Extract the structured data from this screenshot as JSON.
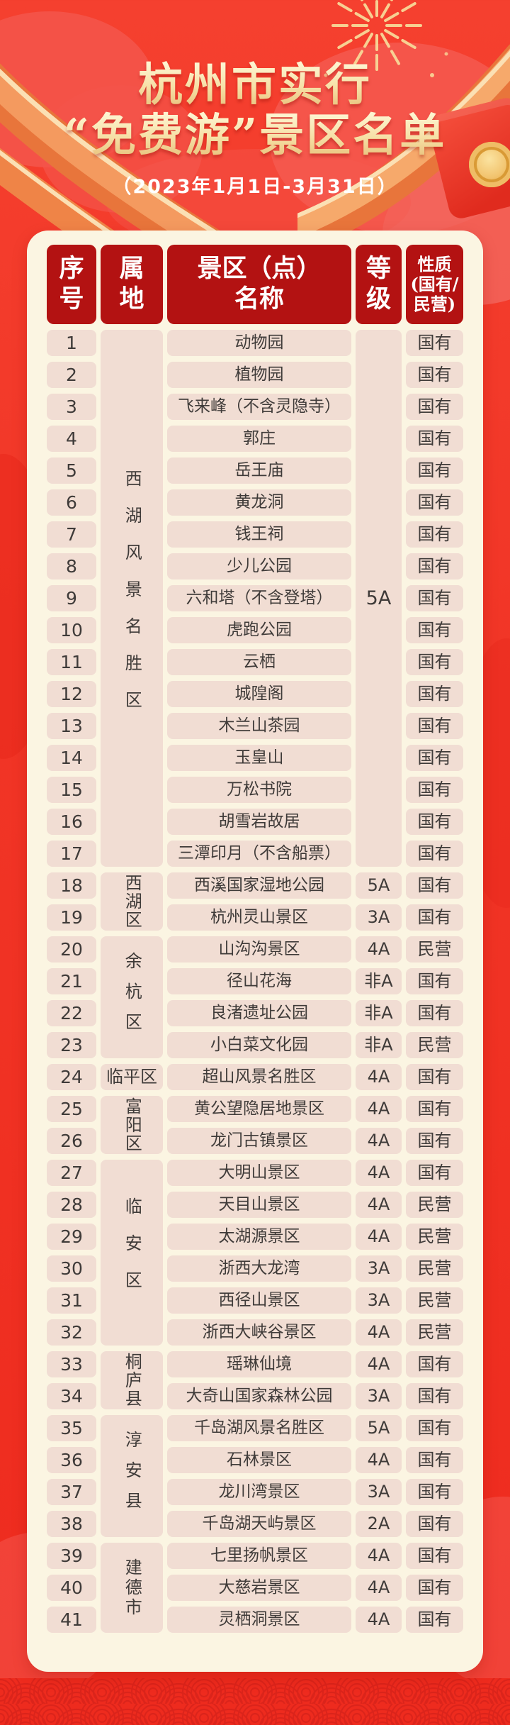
{
  "poster": {
    "title_line1": "杭州市实行",
    "title_line2": "“免费游”景区名单",
    "date_range": "（2023年1月1日-3月31日）",
    "colors": {
      "background_red": "#f13526",
      "header_cell_red": "#b31212",
      "sheet_cream": "#fbf5e2",
      "cell_pink": "#f1ddd3",
      "title_gold": "#f6e0a6",
      "body_text": "#3f3b39"
    },
    "decorations": [
      "firework-burst",
      "orange-ribbon-left",
      "orange-ribbon-right",
      "red-envelope",
      "gold-coin",
      "cloud-blobs",
      "wave-scale-border"
    ]
  },
  "table": {
    "columns": [
      {
        "key": "seq",
        "label": "序\n号"
      },
      {
        "key": "district",
        "label": "属\n地"
      },
      {
        "key": "name",
        "label": "景区（点）\n名称"
      },
      {
        "key": "grade",
        "label": "等\n级"
      },
      {
        "key": "nature",
        "label": "性质\n(国有/\n民营)"
      }
    ],
    "district_groups": [
      {
        "label": "西湖风景名胜区",
        "start": 1,
        "span": 17
      },
      {
        "label": "西湖区",
        "start": 18,
        "span": 2
      },
      {
        "label": "余杭区",
        "start": 20,
        "span": 4
      },
      {
        "label": "临平区",
        "start": 24,
        "span": 1
      },
      {
        "label": "富阳区",
        "start": 25,
        "span": 2
      },
      {
        "label": "临安区",
        "start": 27,
        "span": 6
      },
      {
        "label": "桐庐县",
        "start": 33,
        "span": 2
      },
      {
        "label": "淳安县",
        "start": 35,
        "span": 4
      },
      {
        "label": "建德市",
        "start": 39,
        "span": 3
      }
    ],
    "grade_groups": [
      {
        "label": "5A",
        "start": 1,
        "span": 17
      }
    ],
    "rows": [
      {
        "seq": "1",
        "name": "动物园",
        "grade": "",
        "nature": "国有"
      },
      {
        "seq": "2",
        "name": "植物园",
        "grade": "",
        "nature": "国有"
      },
      {
        "seq": "3",
        "name": "飞来峰（不含灵隐寺）",
        "grade": "",
        "nature": "国有"
      },
      {
        "seq": "4",
        "name": "郭庄",
        "grade": "",
        "nature": "国有"
      },
      {
        "seq": "5",
        "name": "岳王庙",
        "grade": "",
        "nature": "国有"
      },
      {
        "seq": "6",
        "name": "黄龙洞",
        "grade": "",
        "nature": "国有"
      },
      {
        "seq": "7",
        "name": "钱王祠",
        "grade": "",
        "nature": "国有"
      },
      {
        "seq": "8",
        "name": "少儿公园",
        "grade": "",
        "nature": "国有"
      },
      {
        "seq": "9",
        "name": "六和塔（不含登塔）",
        "grade": "",
        "nature": "国有"
      },
      {
        "seq": "10",
        "name": "虎跑公园",
        "grade": "",
        "nature": "国有"
      },
      {
        "seq": "11",
        "name": "云栖",
        "grade": "",
        "nature": "国有"
      },
      {
        "seq": "12",
        "name": "城隍阁",
        "grade": "",
        "nature": "国有"
      },
      {
        "seq": "13",
        "name": "木兰山茶园",
        "grade": "",
        "nature": "国有"
      },
      {
        "seq": "14",
        "name": "玉皇山",
        "grade": "",
        "nature": "国有"
      },
      {
        "seq": "15",
        "name": "万松书院",
        "grade": "",
        "nature": "国有"
      },
      {
        "seq": "16",
        "name": "胡雪岩故居",
        "grade": "",
        "nature": "国有"
      },
      {
        "seq": "17",
        "name": "三潭印月（不含船票）",
        "grade": "",
        "nature": "国有"
      },
      {
        "seq": "18",
        "name": "西溪国家湿地公园",
        "grade": "5A",
        "nature": "国有"
      },
      {
        "seq": "19",
        "name": "杭州灵山景区",
        "grade": "3A",
        "nature": "国有"
      },
      {
        "seq": "20",
        "name": "山沟沟景区",
        "grade": "4A",
        "nature": "民营"
      },
      {
        "seq": "21",
        "name": "径山花海",
        "grade": "非A",
        "nature": "国有"
      },
      {
        "seq": "22",
        "name": "良渚遗址公园",
        "grade": "非A",
        "nature": "国有"
      },
      {
        "seq": "23",
        "name": "小白菜文化园",
        "grade": "非A",
        "nature": "民营"
      },
      {
        "seq": "24",
        "name": "超山风景名胜区",
        "grade": "4A",
        "nature": "国有"
      },
      {
        "seq": "25",
        "name": "黄公望隐居地景区",
        "grade": "4A",
        "nature": "国有"
      },
      {
        "seq": "26",
        "name": "龙门古镇景区",
        "grade": "4A",
        "nature": "国有"
      },
      {
        "seq": "27",
        "name": "大明山景区",
        "grade": "4A",
        "nature": "国有"
      },
      {
        "seq": "28",
        "name": "天目山景区",
        "grade": "4A",
        "nature": "民营"
      },
      {
        "seq": "29",
        "name": "太湖源景区",
        "grade": "4A",
        "nature": "民营"
      },
      {
        "seq": "30",
        "name": "浙西大龙湾",
        "grade": "3A",
        "nature": "民营"
      },
      {
        "seq": "31",
        "name": "西径山景区",
        "grade": "3A",
        "nature": "民营"
      },
      {
        "seq": "32",
        "name": "浙西大峡谷景区",
        "grade": "4A",
        "nature": "民营"
      },
      {
        "seq": "33",
        "name": "瑶琳仙境",
        "grade": "4A",
        "nature": "国有"
      },
      {
        "seq": "34",
        "name": "大奇山国家森林公园",
        "grade": "3A",
        "nature": "国有"
      },
      {
        "seq": "35",
        "name": "千岛湖风景名胜区",
        "grade": "5A",
        "nature": "国有"
      },
      {
        "seq": "36",
        "name": "石林景区",
        "grade": "4A",
        "nature": "国有"
      },
      {
        "seq": "37",
        "name": "龙川湾景区",
        "grade": "3A",
        "nature": "国有"
      },
      {
        "seq": "38",
        "name": "千岛湖天屿景区",
        "grade": "2A",
        "nature": "国有"
      },
      {
        "seq": "39",
        "name": "七里扬帆景区",
        "grade": "4A",
        "nature": "国有"
      },
      {
        "seq": "40",
        "name": "大慈岩景区",
        "grade": "4A",
        "nature": "国有"
      },
      {
        "seq": "41",
        "name": "灵栖洞景区",
        "grade": "4A",
        "nature": "国有"
      }
    ]
  }
}
